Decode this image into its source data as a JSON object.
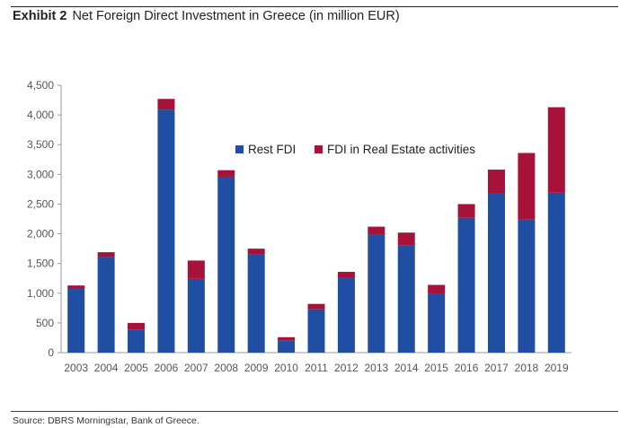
{
  "header": {
    "exhibit": "Exhibit 2",
    "title": "Net Foreign Direct Investment in Greece (in million EUR)"
  },
  "footer": {
    "source": "Source: DBRS Morningstar, Bank of Greece."
  },
  "chart_data": {
    "type": "bar",
    "stacked": true,
    "title": "Net Foreign Direct Investment in Greece (in million EUR)",
    "categories": [
      "2003",
      "2004",
      "2005",
      "2006",
      "2007",
      "2008",
      "2009",
      "2010",
      "2011",
      "2012",
      "2013",
      "2014",
      "2015",
      "2016",
      "2017",
      "2018",
      "2019"
    ],
    "series": [
      {
        "name": "Rest FDI",
        "color": "#1f4ea3",
        "values": [
          1080,
          1610,
          390,
          4090,
          1240,
          2960,
          1660,
          200,
          730,
          1260,
          1980,
          1800,
          990,
          2270,
          2680,
          2240,
          2690
        ]
      },
      {
        "name": "FDI in Real Estate activities",
        "color": "#a6123a",
        "values": [
          50,
          80,
          110,
          180,
          310,
          110,
          90,
          60,
          90,
          100,
          140,
          220,
          150,
          230,
          400,
          1120,
          1440
        ]
      }
    ],
    "yticks": [
      "0",
      "500",
      "1,000",
      "1,500",
      "2,000",
      "2,500",
      "3,000",
      "3,500",
      "4,000",
      "4,500"
    ],
    "ylim": [
      0,
      4500
    ],
    "grid": false,
    "legend_position": "top-center"
  }
}
